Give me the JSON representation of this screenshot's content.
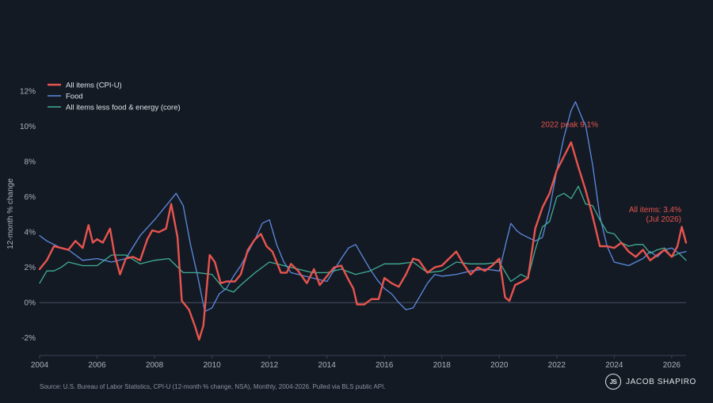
{
  "chart_data": {
    "type": "line",
    "title": "",
    "ylabel": "12-month % change",
    "xlabel": "",
    "xlim": [
      2004,
      2026.5
    ],
    "ylim": [
      -3,
      12.5
    ],
    "y_ticks": [
      -2,
      0,
      2,
      4,
      6,
      8,
      10,
      12
    ],
    "y_tick_labels": [
      "-2%",
      "0%",
      "2%",
      "4%",
      "6%",
      "8%",
      "10%",
      "12%"
    ],
    "x_ticks": [
      2004,
      2006,
      2008,
      2010,
      2012,
      2014,
      2016,
      2018,
      2020,
      2022,
      2024,
      2026
    ],
    "x_tick_labels": [
      "2004",
      "2006",
      "2008",
      "2010",
      "2012",
      "2014",
      "2016",
      "2018",
      "2020",
      "2022",
      "2024",
      "2026"
    ],
    "grid": false,
    "legend_position": "top-left",
    "series": [
      {
        "name": "All items (CPI-U)",
        "color": "#e8544e",
        "points": [
          [
            2004.0,
            1.9
          ],
          [
            2004.25,
            2.4
          ],
          [
            2004.5,
            3.2
          ],
          [
            2004.75,
            3.1
          ],
          [
            2005.0,
            3.0
          ],
          [
            2005.25,
            3.5
          ],
          [
            2005.5,
            3.1
          ],
          [
            2005.7,
            4.4
          ],
          [
            2005.85,
            3.4
          ],
          [
            2006.0,
            3.6
          ],
          [
            2006.2,
            3.4
          ],
          [
            2006.45,
            4.2
          ],
          [
            2006.6,
            2.8
          ],
          [
            2006.8,
            1.6
          ],
          [
            2007.0,
            2.5
          ],
          [
            2007.25,
            2.6
          ],
          [
            2007.5,
            2.4
          ],
          [
            2007.75,
            3.6
          ],
          [
            2007.92,
            4.1
          ],
          [
            2008.15,
            4.0
          ],
          [
            2008.4,
            4.2
          ],
          [
            2008.58,
            5.6
          ],
          [
            2008.8,
            3.7
          ],
          [
            2008.95,
            0.1
          ],
          [
            2009.2,
            -0.4
          ],
          [
            2009.42,
            -1.4
          ],
          [
            2009.55,
            -2.1
          ],
          [
            2009.7,
            -1.3
          ],
          [
            2009.92,
            2.7
          ],
          [
            2010.1,
            2.3
          ],
          [
            2010.3,
            1.1
          ],
          [
            2010.5,
            1.2
          ],
          [
            2010.8,
            1.2
          ],
          [
            2011.0,
            1.6
          ],
          [
            2011.25,
            3.0
          ],
          [
            2011.5,
            3.6
          ],
          [
            2011.7,
            3.9
          ],
          [
            2011.9,
            3.2
          ],
          [
            2012.1,
            2.9
          ],
          [
            2012.4,
            1.7
          ],
          [
            2012.6,
            1.7
          ],
          [
            2012.75,
            2.2
          ],
          [
            2013.0,
            1.8
          ],
          [
            2013.3,
            1.1
          ],
          [
            2013.55,
            1.9
          ],
          [
            2013.75,
            1.0
          ],
          [
            2014.0,
            1.5
          ],
          [
            2014.25,
            2.0
          ],
          [
            2014.5,
            2.1
          ],
          [
            2014.75,
            1.3
          ],
          [
            2014.92,
            0.8
          ],
          [
            2015.05,
            -0.1
          ],
          [
            2015.3,
            -0.1
          ],
          [
            2015.55,
            0.2
          ],
          [
            2015.8,
            0.2
          ],
          [
            2016.0,
            1.4
          ],
          [
            2016.25,
            1.1
          ],
          [
            2016.5,
            0.9
          ],
          [
            2016.75,
            1.6
          ],
          [
            2017.0,
            2.5
          ],
          [
            2017.2,
            2.4
          ],
          [
            2017.5,
            1.7
          ],
          [
            2017.75,
            2.0
          ],
          [
            2018.0,
            2.1
          ],
          [
            2018.25,
            2.5
          ],
          [
            2018.5,
            2.9
          ],
          [
            2018.75,
            2.2
          ],
          [
            2019.0,
            1.6
          ],
          [
            2019.25,
            2.0
          ],
          [
            2019.5,
            1.8
          ],
          [
            2019.75,
            2.1
          ],
          [
            2020.0,
            2.5
          ],
          [
            2020.2,
            0.3
          ],
          [
            2020.35,
            0.1
          ],
          [
            2020.55,
            1.0
          ],
          [
            2020.8,
            1.2
          ],
          [
            2021.0,
            1.4
          ],
          [
            2021.25,
            4.2
          ],
          [
            2021.5,
            5.4
          ],
          [
            2021.75,
            6.2
          ],
          [
            2022.0,
            7.5
          ],
          [
            2022.25,
            8.3
          ],
          [
            2022.5,
            9.1
          ],
          [
            2022.75,
            7.7
          ],
          [
            2023.0,
            6.4
          ],
          [
            2023.25,
            4.9
          ],
          [
            2023.5,
            3.2
          ],
          [
            2023.75,
            3.2
          ],
          [
            2024.0,
            3.1
          ],
          [
            2024.25,
            3.4
          ],
          [
            2024.5,
            2.9
          ],
          [
            2024.75,
            2.6
          ],
          [
            2025.0,
            3.0
          ],
          [
            2025.25,
            2.4
          ],
          [
            2025.5,
            2.7
          ],
          [
            2025.75,
            3.0
          ],
          [
            2026.0,
            2.6
          ],
          [
            2026.2,
            3.2
          ],
          [
            2026.35,
            4.3
          ],
          [
            2026.5,
            3.4
          ]
        ]
      },
      {
        "name": "Food",
        "color": "#5b8be0",
        "points": [
          [
            2004.0,
            3.8
          ],
          [
            2004.25,
            3.5
          ],
          [
            2004.5,
            3.3
          ],
          [
            2004.75,
            3.1
          ],
          [
            2005.0,
            3.0
          ],
          [
            2005.5,
            2.4
          ],
          [
            2006.0,
            2.5
          ],
          [
            2006.5,
            2.3
          ],
          [
            2007.0,
            2.5
          ],
          [
            2007.5,
            3.8
          ],
          [
            2008.0,
            4.7
          ],
          [
            2008.4,
            5.5
          ],
          [
            2008.75,
            6.2
          ],
          [
            2009.0,
            5.5
          ],
          [
            2009.25,
            3.3
          ],
          [
            2009.5,
            1.5
          ],
          [
            2009.75,
            -0.5
          ],
          [
            2010.0,
            -0.3
          ],
          [
            2010.25,
            0.5
          ],
          [
            2010.5,
            0.8
          ],
          [
            2010.75,
            1.5
          ],
          [
            2011.0,
            2.1
          ],
          [
            2011.5,
            3.6
          ],
          [
            2011.75,
            4.5
          ],
          [
            2012.0,
            4.7
          ],
          [
            2012.25,
            3.3
          ],
          [
            2012.5,
            2.3
          ],
          [
            2012.75,
            1.7
          ],
          [
            2013.0,
            1.6
          ],
          [
            2013.5,
            1.4
          ],
          [
            2014.0,
            1.2
          ],
          [
            2014.5,
            2.5
          ],
          [
            2014.75,
            3.1
          ],
          [
            2015.0,
            3.3
          ],
          [
            2015.25,
            2.6
          ],
          [
            2015.5,
            1.9
          ],
          [
            2015.75,
            1.3
          ],
          [
            2016.0,
            0.8
          ],
          [
            2016.25,
            0.5
          ],
          [
            2016.5,
            0.0
          ],
          [
            2016.75,
            -0.4
          ],
          [
            2017.0,
            -0.3
          ],
          [
            2017.25,
            0.4
          ],
          [
            2017.5,
            1.1
          ],
          [
            2017.75,
            1.6
          ],
          [
            2018.0,
            1.5
          ],
          [
            2018.5,
            1.6
          ],
          [
            2019.0,
            1.8
          ],
          [
            2019.5,
            1.9
          ],
          [
            2020.0,
            1.8
          ],
          [
            2020.25,
            3.5
          ],
          [
            2020.4,
            4.5
          ],
          [
            2020.6,
            4.1
          ],
          [
            2020.75,
            3.9
          ],
          [
            2021.0,
            3.7
          ],
          [
            2021.25,
            3.5
          ],
          [
            2021.5,
            3.7
          ],
          [
            2021.75,
            5.3
          ],
          [
            2022.0,
            7.5
          ],
          [
            2022.25,
            9.4
          ],
          [
            2022.5,
            10.9
          ],
          [
            2022.65,
            11.4
          ],
          [
            2022.9,
            10.4
          ],
          [
            2023.0,
            10.1
          ],
          [
            2023.25,
            7.8
          ],
          [
            2023.5,
            4.9
          ],
          [
            2023.75,
            3.2
          ],
          [
            2024.0,
            2.3
          ],
          [
            2024.25,
            2.2
          ],
          [
            2024.5,
            2.1
          ],
          [
            2024.75,
            2.3
          ],
          [
            2025.0,
            2.5
          ],
          [
            2025.25,
            2.9
          ],
          [
            2025.5,
            2.6
          ],
          [
            2025.75,
            3.0
          ],
          [
            2026.0,
            3.1
          ],
          [
            2026.25,
            2.8
          ],
          [
            2026.5,
            2.9
          ]
        ]
      },
      {
        "name": "All items less food & energy (core)",
        "color": "#3fae94",
        "points": [
          [
            2004.0,
            1.1
          ],
          [
            2004.25,
            1.8
          ],
          [
            2004.5,
            1.8
          ],
          [
            2004.75,
            2.0
          ],
          [
            2005.0,
            2.3
          ],
          [
            2005.5,
            2.1
          ],
          [
            2006.0,
            2.1
          ],
          [
            2006.5,
            2.7
          ],
          [
            2007.0,
            2.7
          ],
          [
            2007.5,
            2.2
          ],
          [
            2008.0,
            2.4
          ],
          [
            2008.5,
            2.5
          ],
          [
            2009.0,
            1.7
          ],
          [
            2009.5,
            1.7
          ],
          [
            2010.0,
            1.6
          ],
          [
            2010.4,
            0.8
          ],
          [
            2010.75,
            0.6
          ],
          [
            2011.0,
            1.0
          ],
          [
            2011.5,
            1.7
          ],
          [
            2012.0,
            2.3
          ],
          [
            2012.5,
            2.1
          ],
          [
            2013.0,
            1.9
          ],
          [
            2013.5,
            1.7
          ],
          [
            2014.0,
            1.7
          ],
          [
            2014.5,
            1.9
          ],
          [
            2015.0,
            1.6
          ],
          [
            2015.5,
            1.8
          ],
          [
            2016.0,
            2.2
          ],
          [
            2016.5,
            2.2
          ],
          [
            2017.0,
            2.3
          ],
          [
            2017.5,
            1.7
          ],
          [
            2018.0,
            1.8
          ],
          [
            2018.5,
            2.3
          ],
          [
            2019.0,
            2.2
          ],
          [
            2019.5,
            2.2
          ],
          [
            2020.0,
            2.3
          ],
          [
            2020.4,
            1.2
          ],
          [
            2020.75,
            1.6
          ],
          [
            2021.0,
            1.4
          ],
          [
            2021.25,
            3.0
          ],
          [
            2021.5,
            4.3
          ],
          [
            2021.75,
            4.6
          ],
          [
            2022.0,
            6.0
          ],
          [
            2022.25,
            6.2
          ],
          [
            2022.5,
            5.9
          ],
          [
            2022.75,
            6.6
          ],
          [
            2023.0,
            5.6
          ],
          [
            2023.25,
            5.5
          ],
          [
            2023.5,
            4.7
          ],
          [
            2023.75,
            4.0
          ],
          [
            2024.0,
            3.9
          ],
          [
            2024.25,
            3.4
          ],
          [
            2024.5,
            3.2
          ],
          [
            2024.75,
            3.3
          ],
          [
            2025.0,
            3.3
          ],
          [
            2025.25,
            2.8
          ],
          [
            2025.5,
            3.0
          ],
          [
            2025.75,
            3.1
          ],
          [
            2026.0,
            2.6
          ],
          [
            2026.25,
            2.8
          ],
          [
            2026.5,
            2.4
          ]
        ]
      }
    ],
    "annotations": [
      {
        "text": "2022 peak 9.1%",
        "x": 2022.5,
        "y": 9.1,
        "color": "#e8544e"
      },
      {
        "text": "All items: 3.4%",
        "x": 2026.45,
        "y": 3.4,
        "color": "#e8544e"
      },
      {
        "text": "(Jul 2026)",
        "x": 2026.45,
        "y": 3.4,
        "color": "#e8544e"
      }
    ]
  },
  "footer": {
    "source": "Source: U.S. Bureau of Labor Statistics, CPI-U (12-month % change, NSA), Monthly, 2004-2026. Pulled via BLS public API.",
    "brand_name": "JACOB SHAPIRO",
    "brand_logo_text": "JS"
  }
}
